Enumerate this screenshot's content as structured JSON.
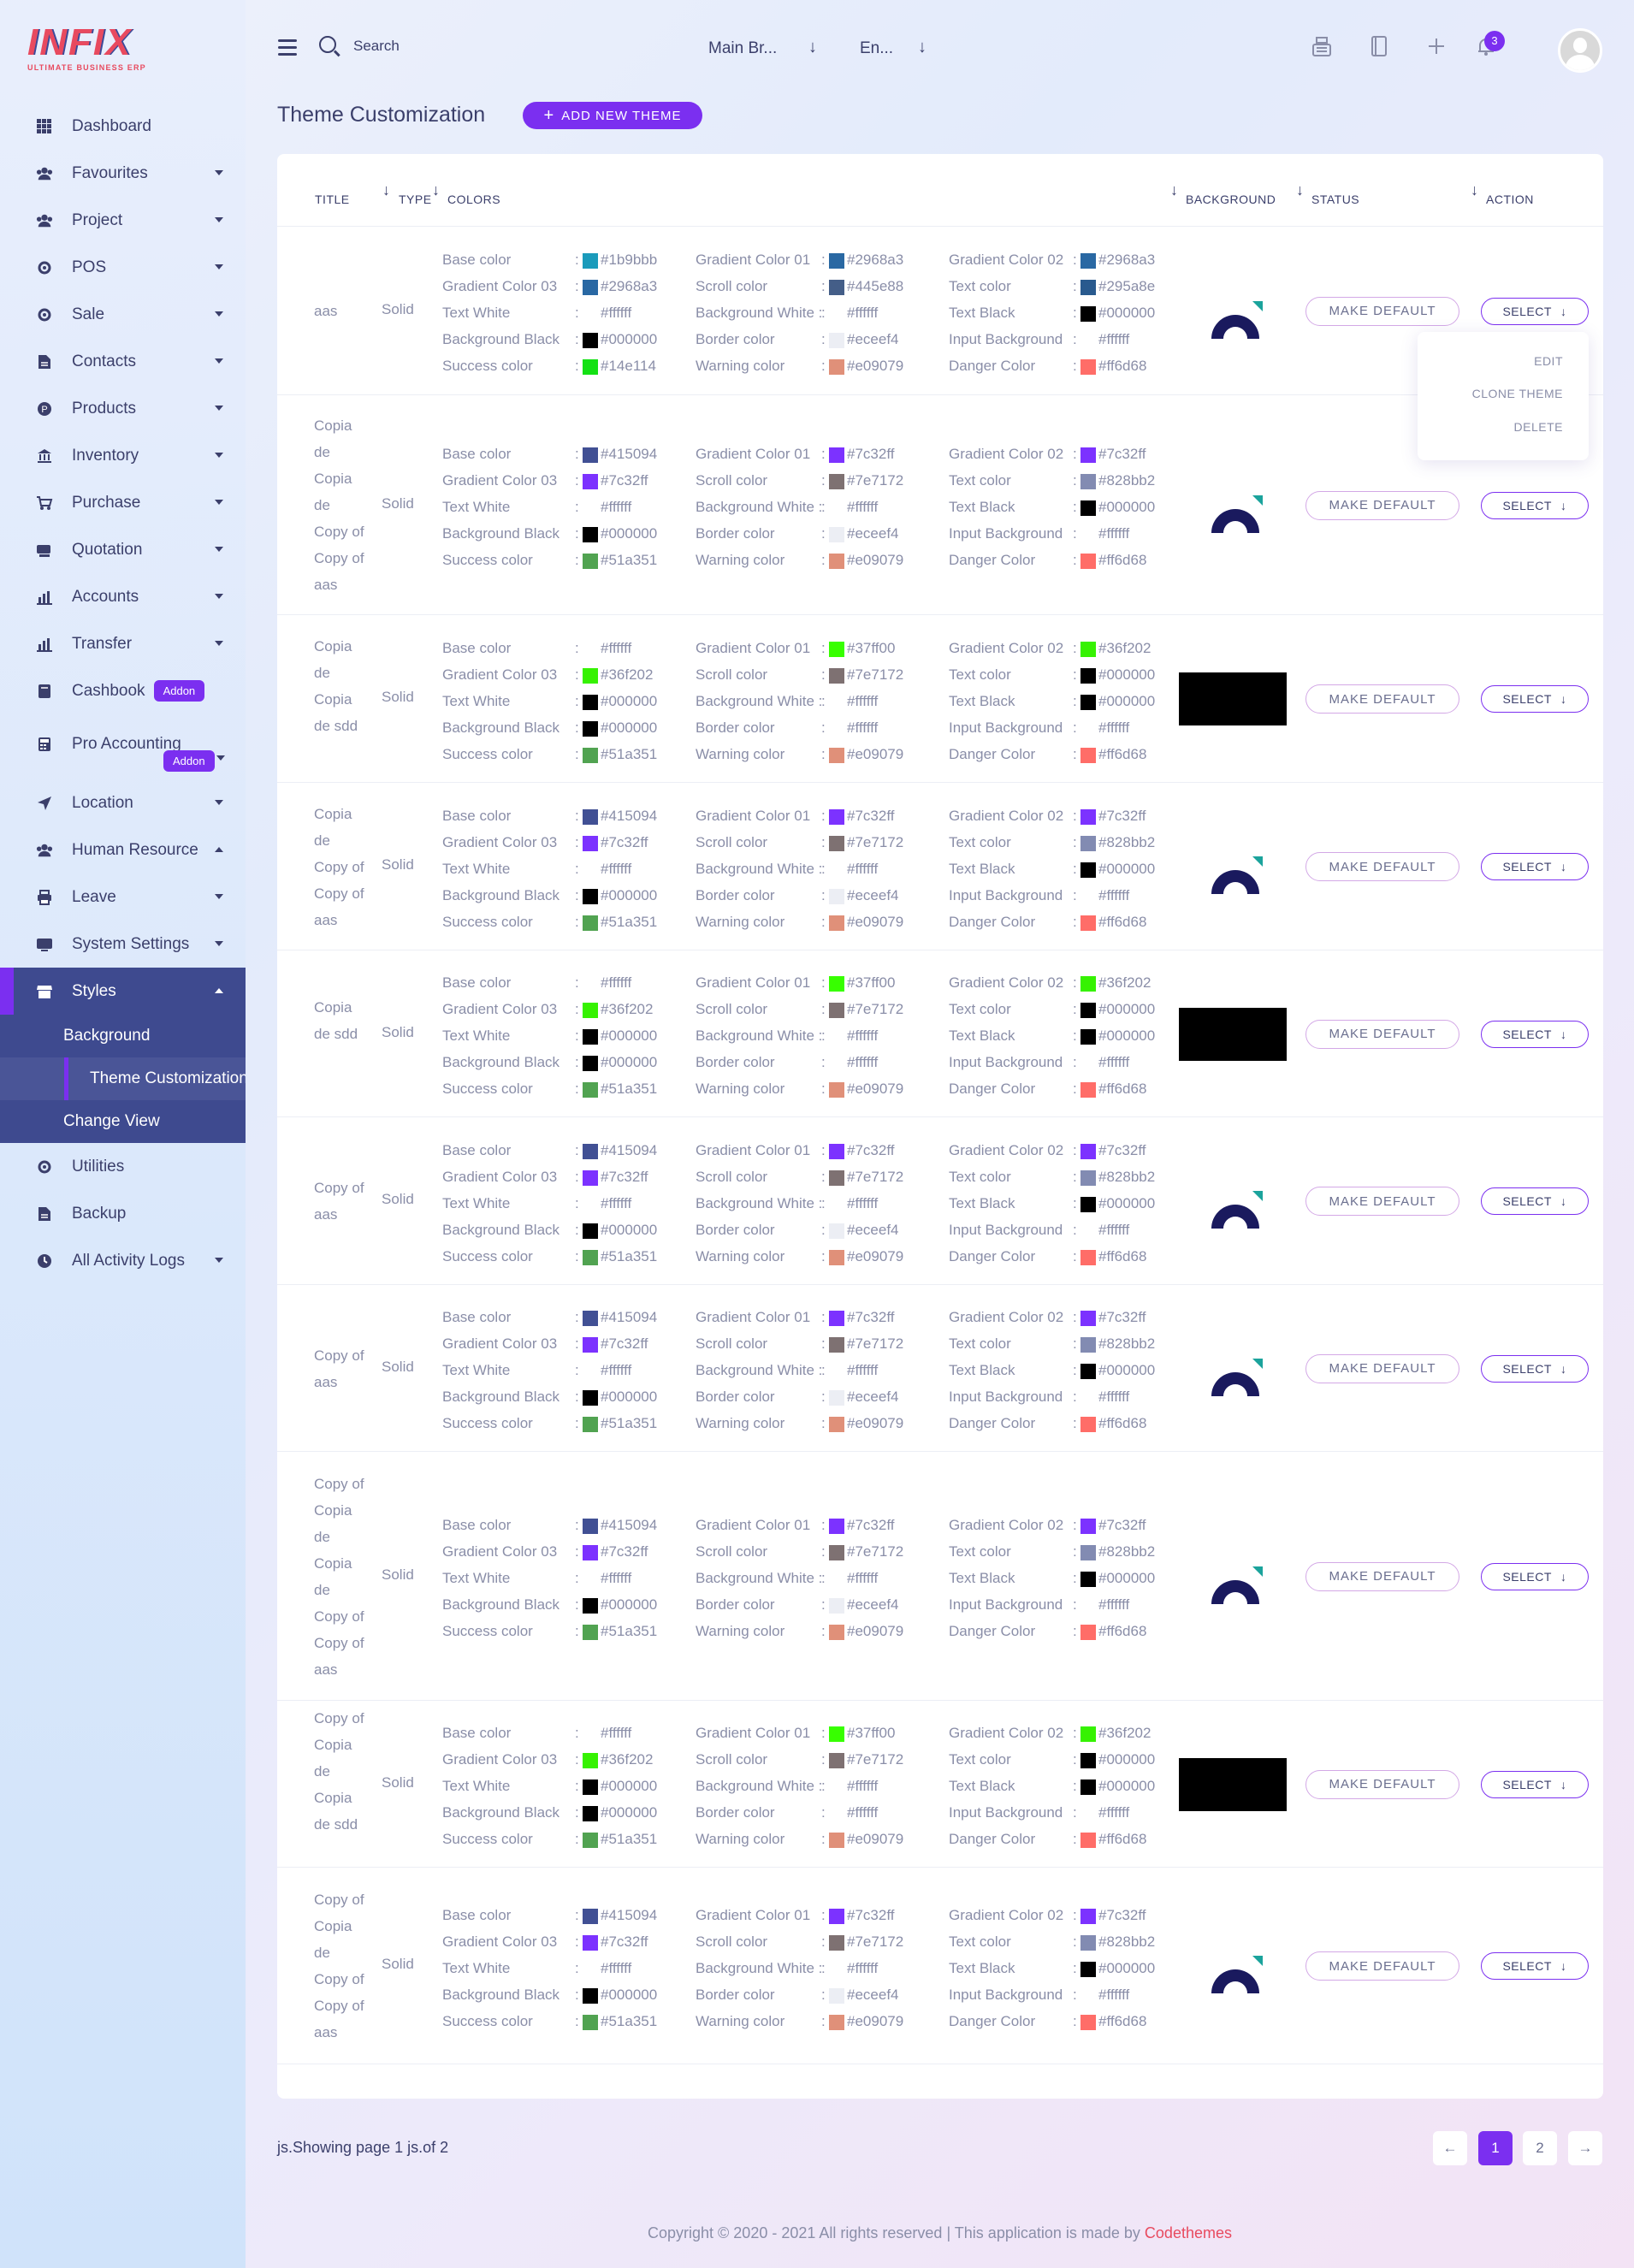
{
  "brand": {
    "logo_text": "INFIX",
    "tagline": "ULTIMATE BUSINESS ERP"
  },
  "sidebar": {
    "items": [
      {
        "label": "Dashboard",
        "icon": "grid-icon",
        "caret": ""
      },
      {
        "label": "Favourites",
        "icon": "users-icon",
        "caret": "down"
      },
      {
        "label": "Project",
        "icon": "users-icon",
        "caret": "down"
      },
      {
        "label": "POS",
        "icon": "gear-icon",
        "caret": "down"
      },
      {
        "label": "Sale",
        "icon": "gear-icon",
        "caret": "down"
      },
      {
        "label": "Contacts",
        "icon": "document-icon",
        "caret": "down"
      },
      {
        "label": "Products",
        "icon": "product-icon",
        "caret": "down"
      },
      {
        "label": "Inventory",
        "icon": "bank-icon",
        "caret": "down"
      },
      {
        "label": "Purchase",
        "icon": "cart-icon",
        "caret": "down"
      },
      {
        "label": "Quotation",
        "icon": "quote-icon",
        "caret": "down"
      },
      {
        "label": "Accounts",
        "icon": "chart-icon",
        "caret": "down"
      },
      {
        "label": "Transfer",
        "icon": "chart-icon",
        "caret": "down"
      }
    ],
    "cashbook": {
      "label": "Cashbook",
      "badge": "Addon"
    },
    "pro_accounting": {
      "label": "Pro Accounting",
      "badge": "Addon"
    },
    "items2": [
      {
        "label": "Location",
        "icon": "location-icon",
        "caret": "down"
      },
      {
        "label": "Human Resource",
        "icon": "users-icon",
        "caret": "up"
      },
      {
        "label": "Leave",
        "icon": "printer-icon",
        "caret": "down"
      },
      {
        "label": "System Settings",
        "icon": "settings-icon",
        "caret": "down"
      }
    ],
    "styles": {
      "label": "Styles",
      "sub_background": "Background",
      "sub_theme": "Theme Customization",
      "sub_change_view": "Change View"
    },
    "items3": [
      {
        "label": "Utilities",
        "icon": "gear-icon",
        "caret": ""
      },
      {
        "label": "Backup",
        "icon": "file-icon",
        "caret": ""
      },
      {
        "label": "All Activity Logs",
        "icon": "clock-icon",
        "caret": "down"
      }
    ]
  },
  "header": {
    "search_placeholder": "Search",
    "branch": "Main Br...",
    "language": "En...",
    "notification_count": "3"
  },
  "page": {
    "title": "Theme Customization",
    "add_button": "ADD NEW THEME"
  },
  "table": {
    "headers": {
      "title": "TITLE",
      "type": "TYPE",
      "colors": "COLORS",
      "background": "BACKGROUND",
      "status": "STATUS",
      "action": "ACTION"
    },
    "labels": {
      "c1": [
        "Base color",
        "Gradient Color 03",
        "Text White",
        "Background Black",
        "Success color"
      ],
      "c2": [
        "Gradient Color 01",
        "Scroll color",
        "Background White :",
        "Border color",
        "Warning color"
      ],
      "c3": [
        "Gradient Color 02",
        "Text color",
        "Text Black",
        "Input Background",
        "Danger Color"
      ]
    },
    "make_default_label": "MAKE DEFAULT",
    "select_label": "SELECT",
    "rows": [
      {
        "title": "aas",
        "type": "Solid",
        "bg": "logo",
        "c1": [
          "#1b9bbb",
          "#2968a3",
          "#ffffff",
          "#000000",
          "#14e114"
        ],
        "c2": [
          "#2968a3",
          "#445e88",
          "#ffffff",
          "#eceef4",
          "#e09079"
        ],
        "c3": [
          "#2968a3",
          "#295a8e",
          "#000000",
          "#ffffff",
          "#ff6d68"
        ]
      },
      {
        "title": "Copia de Copia de Copy of Copy of aas",
        "type": "Solid",
        "bg": "logo",
        "c1": [
          "#415094",
          "#7c32ff",
          "#ffffff",
          "#000000",
          "#51a351"
        ],
        "c2": [
          "#7c32ff",
          "#7e7172",
          "#ffffff",
          "#eceef4",
          "#e09079"
        ],
        "c3": [
          "#7c32ff",
          "#828bb2",
          "#000000",
          "#ffffff",
          "#ff6d68"
        ]
      },
      {
        "title": "Copia de Copia de sdd",
        "type": "Solid",
        "bg": "black",
        "c1": [
          "#ffffff",
          "#36f202",
          "#000000",
          "#000000",
          "#51a351"
        ],
        "c2": [
          "#37ff00",
          "#7e7172",
          "#ffffff",
          "#ffffff",
          "#e09079"
        ],
        "c3": [
          "#36f202",
          "#000000",
          "#000000",
          "#ffffff",
          "#ff6d68"
        ]
      },
      {
        "title": "Copia de Copy of Copy of aas",
        "type": "Solid",
        "bg": "logo",
        "c1": [
          "#415094",
          "#7c32ff",
          "#ffffff",
          "#000000",
          "#51a351"
        ],
        "c2": [
          "#7c32ff",
          "#7e7172",
          "#ffffff",
          "#eceef4",
          "#e09079"
        ],
        "c3": [
          "#7c32ff",
          "#828bb2",
          "#000000",
          "#ffffff",
          "#ff6d68"
        ]
      },
      {
        "title": "Copia de sdd",
        "type": "Solid",
        "bg": "black",
        "c1": [
          "#ffffff",
          "#36f202",
          "#000000",
          "#000000",
          "#51a351"
        ],
        "c2": [
          "#37ff00",
          "#7e7172",
          "#ffffff",
          "#ffffff",
          "#e09079"
        ],
        "c3": [
          "#36f202",
          "#000000",
          "#000000",
          "#ffffff",
          "#ff6d68"
        ]
      },
      {
        "title": "Copy of aas",
        "type": "Solid",
        "bg": "logo",
        "c1": [
          "#415094",
          "#7c32ff",
          "#ffffff",
          "#000000",
          "#51a351"
        ],
        "c2": [
          "#7c32ff",
          "#7e7172",
          "#ffffff",
          "#eceef4",
          "#e09079"
        ],
        "c3": [
          "#7c32ff",
          "#828bb2",
          "#000000",
          "#ffffff",
          "#ff6d68"
        ]
      },
      {
        "title": "Copy of aas",
        "type": "Solid",
        "bg": "logo",
        "c1": [
          "#415094",
          "#7c32ff",
          "#ffffff",
          "#000000",
          "#51a351"
        ],
        "c2": [
          "#7c32ff",
          "#7e7172",
          "#ffffff",
          "#eceef4",
          "#e09079"
        ],
        "c3": [
          "#7c32ff",
          "#828bb2",
          "#000000",
          "#ffffff",
          "#ff6d68"
        ]
      },
      {
        "title": "Copy of Copia de Copia de Copy of Copy of aas",
        "type": "Solid",
        "bg": "logo",
        "c1": [
          "#415094",
          "#7c32ff",
          "#ffffff",
          "#000000",
          "#51a351"
        ],
        "c2": [
          "#7c32ff",
          "#7e7172",
          "#ffffff",
          "#eceef4",
          "#e09079"
        ],
        "c3": [
          "#7c32ff",
          "#828bb2",
          "#000000",
          "#ffffff",
          "#ff6d68"
        ]
      },
      {
        "title": "Copy of Copia de Copia de sdd",
        "type": "Solid",
        "bg": "black",
        "c1": [
          "#ffffff",
          "#36f202",
          "#000000",
          "#000000",
          "#51a351"
        ],
        "c2": [
          "#37ff00",
          "#7e7172",
          "#ffffff",
          "#ffffff",
          "#e09079"
        ],
        "c3": [
          "#36f202",
          "#000000",
          "#000000",
          "#ffffff",
          "#ff6d68"
        ]
      },
      {
        "title": "Copy of Copia de Copy of Copy of aas",
        "type": "Solid",
        "bg": "logo",
        "c1": [
          "#415094",
          "#7c32ff",
          "#ffffff",
          "#000000",
          "#51a351"
        ],
        "c2": [
          "#7c32ff",
          "#7e7172",
          "#ffffff",
          "#eceef4",
          "#e09079"
        ],
        "c3": [
          "#7c32ff",
          "#828bb2",
          "#000000",
          "#ffffff",
          "#ff6d68"
        ]
      }
    ],
    "dropdown": {
      "edit": "EDIT",
      "clone": "CLONE THEME",
      "delete": "DELETE"
    }
  },
  "pagination": {
    "showing": "js.Showing page 1 js.of 2",
    "pages": [
      "1",
      "2"
    ],
    "active": "1"
  },
  "footer": {
    "copyright": "Copyright © 2020 - 2021 All rights reserved | This application is made by",
    "brand": "Codethemes"
  },
  "colors": {
    "accent": "#7b2ff0",
    "sidebar_active": "#3e4a8f",
    "brand_red": "#e84a5f"
  }
}
